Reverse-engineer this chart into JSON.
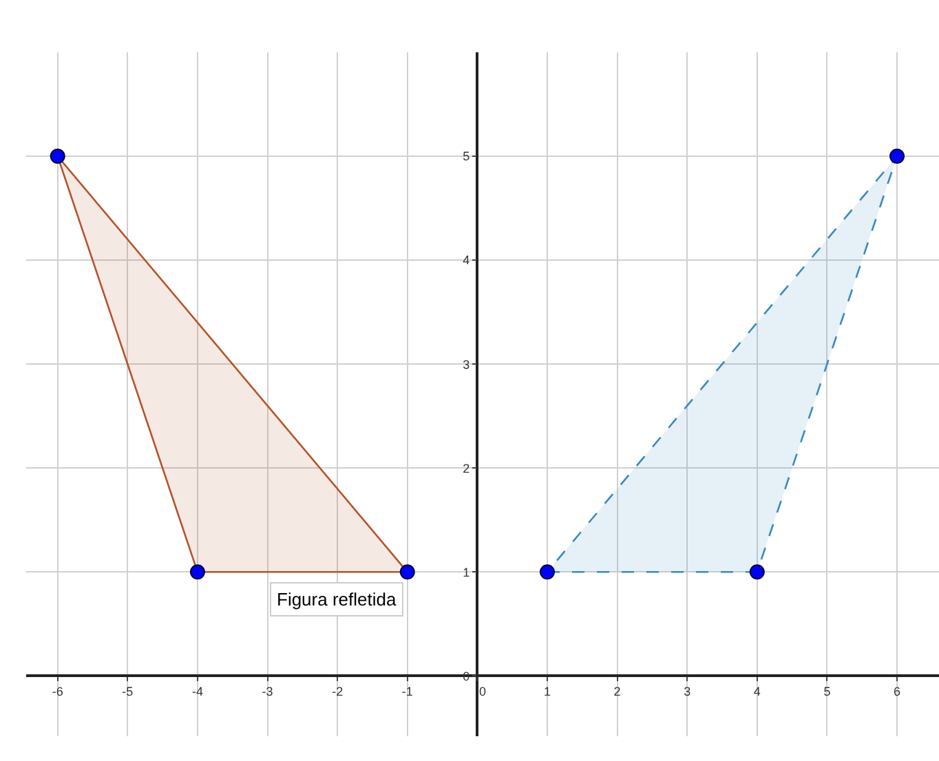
{
  "chart_data": {
    "type": "area",
    "series": [
      {
        "color": "#b5542a",
        "x": [
          -6,
          -4,
          -1
        ],
        "values": [
          5,
          1,
          1
        ],
        "line_style": "solid"
      },
      {
        "color": "#3a8ac0",
        "x": [
          1,
          4,
          6
        ],
        "values": [
          1,
          1,
          5
        ],
        "line_style": "dashed"
      },
      {
        "type": "scatter",
        "color": "#0000ff",
        "x": [
          -6,
          -4,
          -1,
          1,
          4,
          6
        ],
        "values": [
          5,
          1,
          1,
          1,
          1,
          5
        ],
        "marker": "circle"
      }
    ],
    "xlim": [
      -6.45,
      6.6
    ],
    "ylim": [
      -0.58,
      6.0
    ],
    "xticks": [
      -6,
      -5,
      -4,
      -3,
      -2,
      -1,
      0,
      1,
      2,
      3,
      4,
      5,
      6
    ],
    "yticks": [
      0,
      1,
      2,
      3,
      4,
      5
    ],
    "annotations": [
      "Figura refletida"
    ],
    "grid": true,
    "legend": false
  }
}
